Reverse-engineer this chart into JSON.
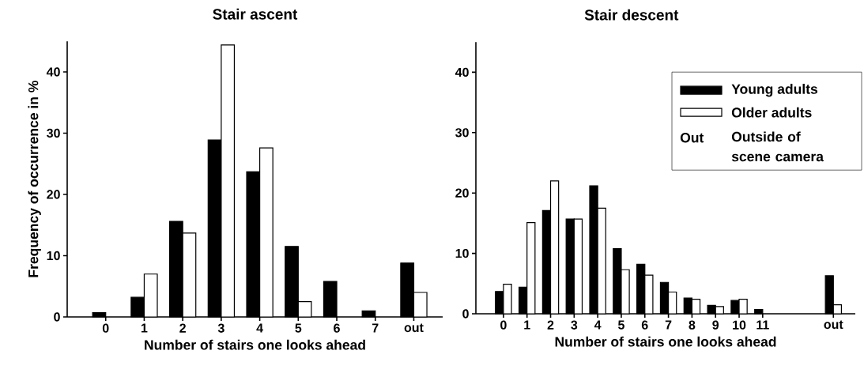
{
  "chart_data": [
    {
      "type": "bar",
      "title": "Stair ascent",
      "xlabel": "Number of stairs one looks ahead",
      "ylabel": "Frequency of occurrence in %",
      "categories": [
        "0",
        "1",
        "2",
        "3",
        "4",
        "5",
        "6",
        "7",
        "out"
      ],
      "series": [
        {
          "color": "#000000",
          "values": [
            0.7,
            3.2,
            15.6,
            28.9,
            23.7,
            11.5,
            5.8,
            1.0,
            8.8
          ]
        },
        {
          "color": "#ffffff",
          "values": [
            0,
            7.0,
            13.7,
            44.4,
            27.6,
            2.5,
            0,
            0,
            4.0
          ]
        }
      ],
      "ylim": [
        0,
        45
      ],
      "yticks": [
        0,
        10,
        20,
        30,
        40
      ]
    },
    {
      "type": "bar",
      "title": "Stair descent",
      "xlabel": "Number of stairs one looks ahead",
      "categories": [
        "0",
        "1",
        "2",
        "3",
        "4",
        "5",
        "6",
        "7",
        "8",
        "9",
        "10",
        "11",
        null,
        null,
        "out"
      ],
      "series": [
        {
          "name": "Young adults",
          "color": "#000000",
          "values": [
            3.7,
            4.4,
            17.1,
            15.7,
            21.2,
            10.8,
            8.2,
            5.2,
            2.6,
            1.4,
            2.2,
            0.7,
            null,
            null,
            6.3
          ]
        },
        {
          "name": "Older adults",
          "color": "#ffffff",
          "values": [
            4.9,
            15.1,
            22.0,
            15.7,
            17.5,
            7.3,
            6.4,
            3.6,
            2.4,
            1.2,
            2.4,
            0,
            null,
            null,
            1.5
          ]
        }
      ],
      "ylim": [
        0,
        45
      ],
      "yticks": [
        0,
        10,
        20,
        30,
        40
      ],
      "legend": "top right",
      "annotations": [
        "Out",
        "Outside of scene camera"
      ]
    }
  ]
}
